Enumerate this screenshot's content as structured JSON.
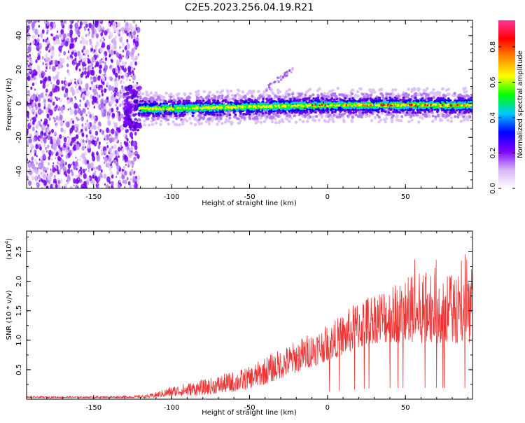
{
  "title": "C2E5.2023.256.04.19.R21",
  "chart_data": [
    {
      "type": "heatmap",
      "xlabel": "Height of straight line (km)",
      "ylabel": "Frequency (Hz)",
      "xlim": [
        -193,
        93
      ],
      "ylim": [
        -50,
        49
      ],
      "xticks": [
        "-150",
        "-100",
        "-50",
        "0",
        "50"
      ],
      "xtick_values": [
        -150,
        -100,
        -50,
        0,
        50
      ],
      "yticks": [
        "40",
        "20",
        "0",
        "-20",
        "-40"
      ],
      "ytick_values": [
        40,
        20,
        0,
        -20,
        -40
      ],
      "noise_region_x": [
        -193,
        -121
      ],
      "signal_center_hz": [
        [
          -121,
          -3
        ],
        [
          -100,
          -3
        ],
        [
          -50,
          -2
        ],
        [
          0,
          -1
        ],
        [
          50,
          -1
        ],
        [
          90,
          -1
        ]
      ],
      "colorbar": {
        "label": "Normalized spectral amplitude",
        "range": [
          0,
          0.95
        ],
        "ticks": [
          "0.8",
          "0.6",
          "0.4",
          "0.2",
          "0.0"
        ],
        "tick_values": [
          0.8,
          0.6,
          0.4,
          0.2,
          0.0
        ],
        "colors": [
          "#ffffff",
          "#d6b3f5",
          "#7d00ff",
          "#0000ff",
          "#00c8ff",
          "#00ff00",
          "#ffff00",
          "#ff8c00",
          "#ff0000",
          "#ff3399"
        ]
      }
    },
    {
      "type": "line",
      "xlabel": "Height of straight line (km)",
      "ylabel": "SNR (10 * v/v)",
      "multiplier": "(x10",
      "multiplier_exp": "4",
      "multiplier_close": ")",
      "xlim": [
        -193,
        93
      ],
      "ylim": [
        0,
        2.85
      ],
      "xticks": [
        "-150",
        "-100",
        "-50",
        "0",
        "50"
      ],
      "xtick_values": [
        -150,
        -100,
        -50,
        0,
        50
      ],
      "yticks": [
        "2.5",
        "2.0",
        "1.5",
        "1.0",
        "0.5"
      ],
      "ytick_values": [
        2.5,
        2.0,
        1.5,
        1.0,
        0.5
      ],
      "color": "#ee3333",
      "envelope": {
        "x": [
          -193,
          -150,
          -125,
          -115,
          -110,
          -100,
          -90,
          -80,
          -70,
          -60,
          -50,
          -40,
          -30,
          -20,
          -10,
          0,
          10,
          20,
          30,
          40,
          50,
          60,
          70,
          80,
          93
        ],
        "low": [
          0.02,
          0.02,
          0.02,
          0.02,
          0.03,
          0.05,
          0.06,
          0.07,
          0.1,
          0.12,
          0.18,
          0.25,
          0.35,
          0.45,
          0.55,
          0.65,
          0.75,
          0.85,
          0.95,
          0.95,
          0.95,
          0.95,
          0.95,
          0.95,
          0.95
        ],
        "high": [
          0.05,
          0.05,
          0.06,
          0.08,
          0.12,
          0.22,
          0.28,
          0.33,
          0.4,
          0.48,
          0.55,
          0.72,
          0.85,
          1.0,
          1.15,
          1.25,
          1.45,
          1.7,
          1.85,
          1.95,
          2.05,
          2.15,
          2.25,
          2.1,
          2.0
        ]
      }
    }
  ]
}
